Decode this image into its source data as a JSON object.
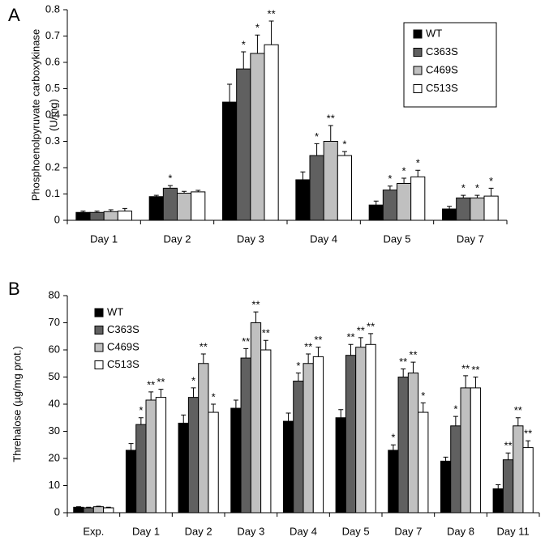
{
  "chart_data": [
    {
      "type": "bar",
      "panel": "A",
      "ylabel": [
        "Phosphoenolpyruvate carboxykinase",
        "(U/mg)"
      ],
      "categories": [
        "Day 1",
        "Day 2",
        "Day 3",
        "Day 4",
        "Day 5",
        "Day 7"
      ],
      "ylim": [
        0,
        0.8
      ],
      "yticks": [
        0,
        0.1,
        0.2,
        0.3,
        0.4,
        0.5,
        0.6,
        0.7,
        0.8
      ],
      "legend": "top-right",
      "series": [
        {
          "name": "WT",
          "color": "#000000",
          "values": [
            0.03,
            0.09,
            0.449,
            0.154,
            0.058,
            0.043
          ],
          "errors": [
            0.005,
            0.005,
            0.068,
            0.03,
            0.015,
            0.01
          ],
          "stars": [
            null,
            null,
            null,
            null,
            null,
            null
          ]
        },
        {
          "name": "C363S",
          "color": "#606060",
          "values": [
            0.03,
            0.122,
            0.575,
            0.246,
            0.115,
            0.085
          ],
          "errors": [
            0.005,
            0.01,
            0.065,
            0.045,
            0.015,
            0.01
          ],
          "stars": [
            null,
            "*",
            "*",
            "*",
            "*",
            "*"
          ]
        },
        {
          "name": "C469S",
          "color": "#c0c0c0",
          "values": [
            0.033,
            0.103,
            0.634,
            0.3,
            0.14,
            0.085
          ],
          "errors": [
            0.007,
            0.007,
            0.07,
            0.06,
            0.02,
            0.01
          ],
          "stars": [
            null,
            null,
            "*",
            "**",
            "*",
            "*"
          ]
        },
        {
          "name": "C513S",
          "color": "#ffffff",
          "values": [
            0.035,
            0.108,
            0.667,
            0.246,
            0.165,
            0.092
          ],
          "errors": [
            0.01,
            0.006,
            0.09,
            0.015,
            0.025,
            0.03
          ],
          "stars": [
            null,
            null,
            "**",
            "*",
            "*",
            "*"
          ]
        }
      ]
    },
    {
      "type": "bar",
      "panel": "B",
      "ylabel": [
        "Threhalose  (µg/mg prot.)"
      ],
      "categories": [
        "Exp.",
        "Day 1",
        "Day 2",
        "Day 3",
        "Day 4",
        "Day 5",
        "Day 7",
        "Day 8",
        "Day 11"
      ],
      "ylim": [
        0,
        80
      ],
      "yticks": [
        0,
        10,
        20,
        30,
        40,
        50,
        60,
        70,
        80
      ],
      "legend": "top-left",
      "series": [
        {
          "name": "WT",
          "color": "#000000",
          "values": [
            2,
            23,
            33,
            38.5,
            33.7,
            35,
            23,
            19,
            8.8
          ],
          "errors": [
            0.2,
            2.5,
            3,
            3,
            3,
            3,
            2,
            1.5,
            1.5
          ],
          "stars": [
            null,
            null,
            null,
            null,
            null,
            null,
            "*",
            null,
            null
          ]
        },
        {
          "name": "C363S",
          "color": "#606060",
          "values": [
            1.8,
            32.5,
            42.5,
            57,
            48.5,
            58,
            50,
            32,
            19.5
          ],
          "errors": [
            0.2,
            2.5,
            3.5,
            3.5,
            3,
            4,
            3,
            3.5,
            2.5
          ],
          "stars": [
            null,
            "*",
            "*",
            "**",
            "*",
            "**",
            "**",
            "*",
            "**"
          ]
        },
        {
          "name": "C469S",
          "color": "#c0c0c0",
          "values": [
            2.2,
            41.5,
            55,
            70,
            55,
            61,
            51.5,
            46,
            32
          ],
          "errors": [
            0.2,
            3,
            3.5,
            4,
            3.5,
            3.5,
            4,
            4.5,
            3
          ],
          "stars": [
            null,
            "**",
            "**",
            "**",
            "**",
            "**",
            "**",
            "**",
            "**"
          ]
        },
        {
          "name": "C513S",
          "color": "#ffffff",
          "values": [
            1.8,
            42.5,
            37,
            60,
            57.5,
            62,
            37,
            46,
            24
          ],
          "errors": [
            0.2,
            3,
            3,
            3.5,
            3.5,
            4,
            3.5,
            4,
            2.5
          ],
          "stars": [
            null,
            "**",
            "*",
            "**",
            "**",
            "**",
            "*",
            "**",
            "**"
          ]
        }
      ]
    }
  ]
}
